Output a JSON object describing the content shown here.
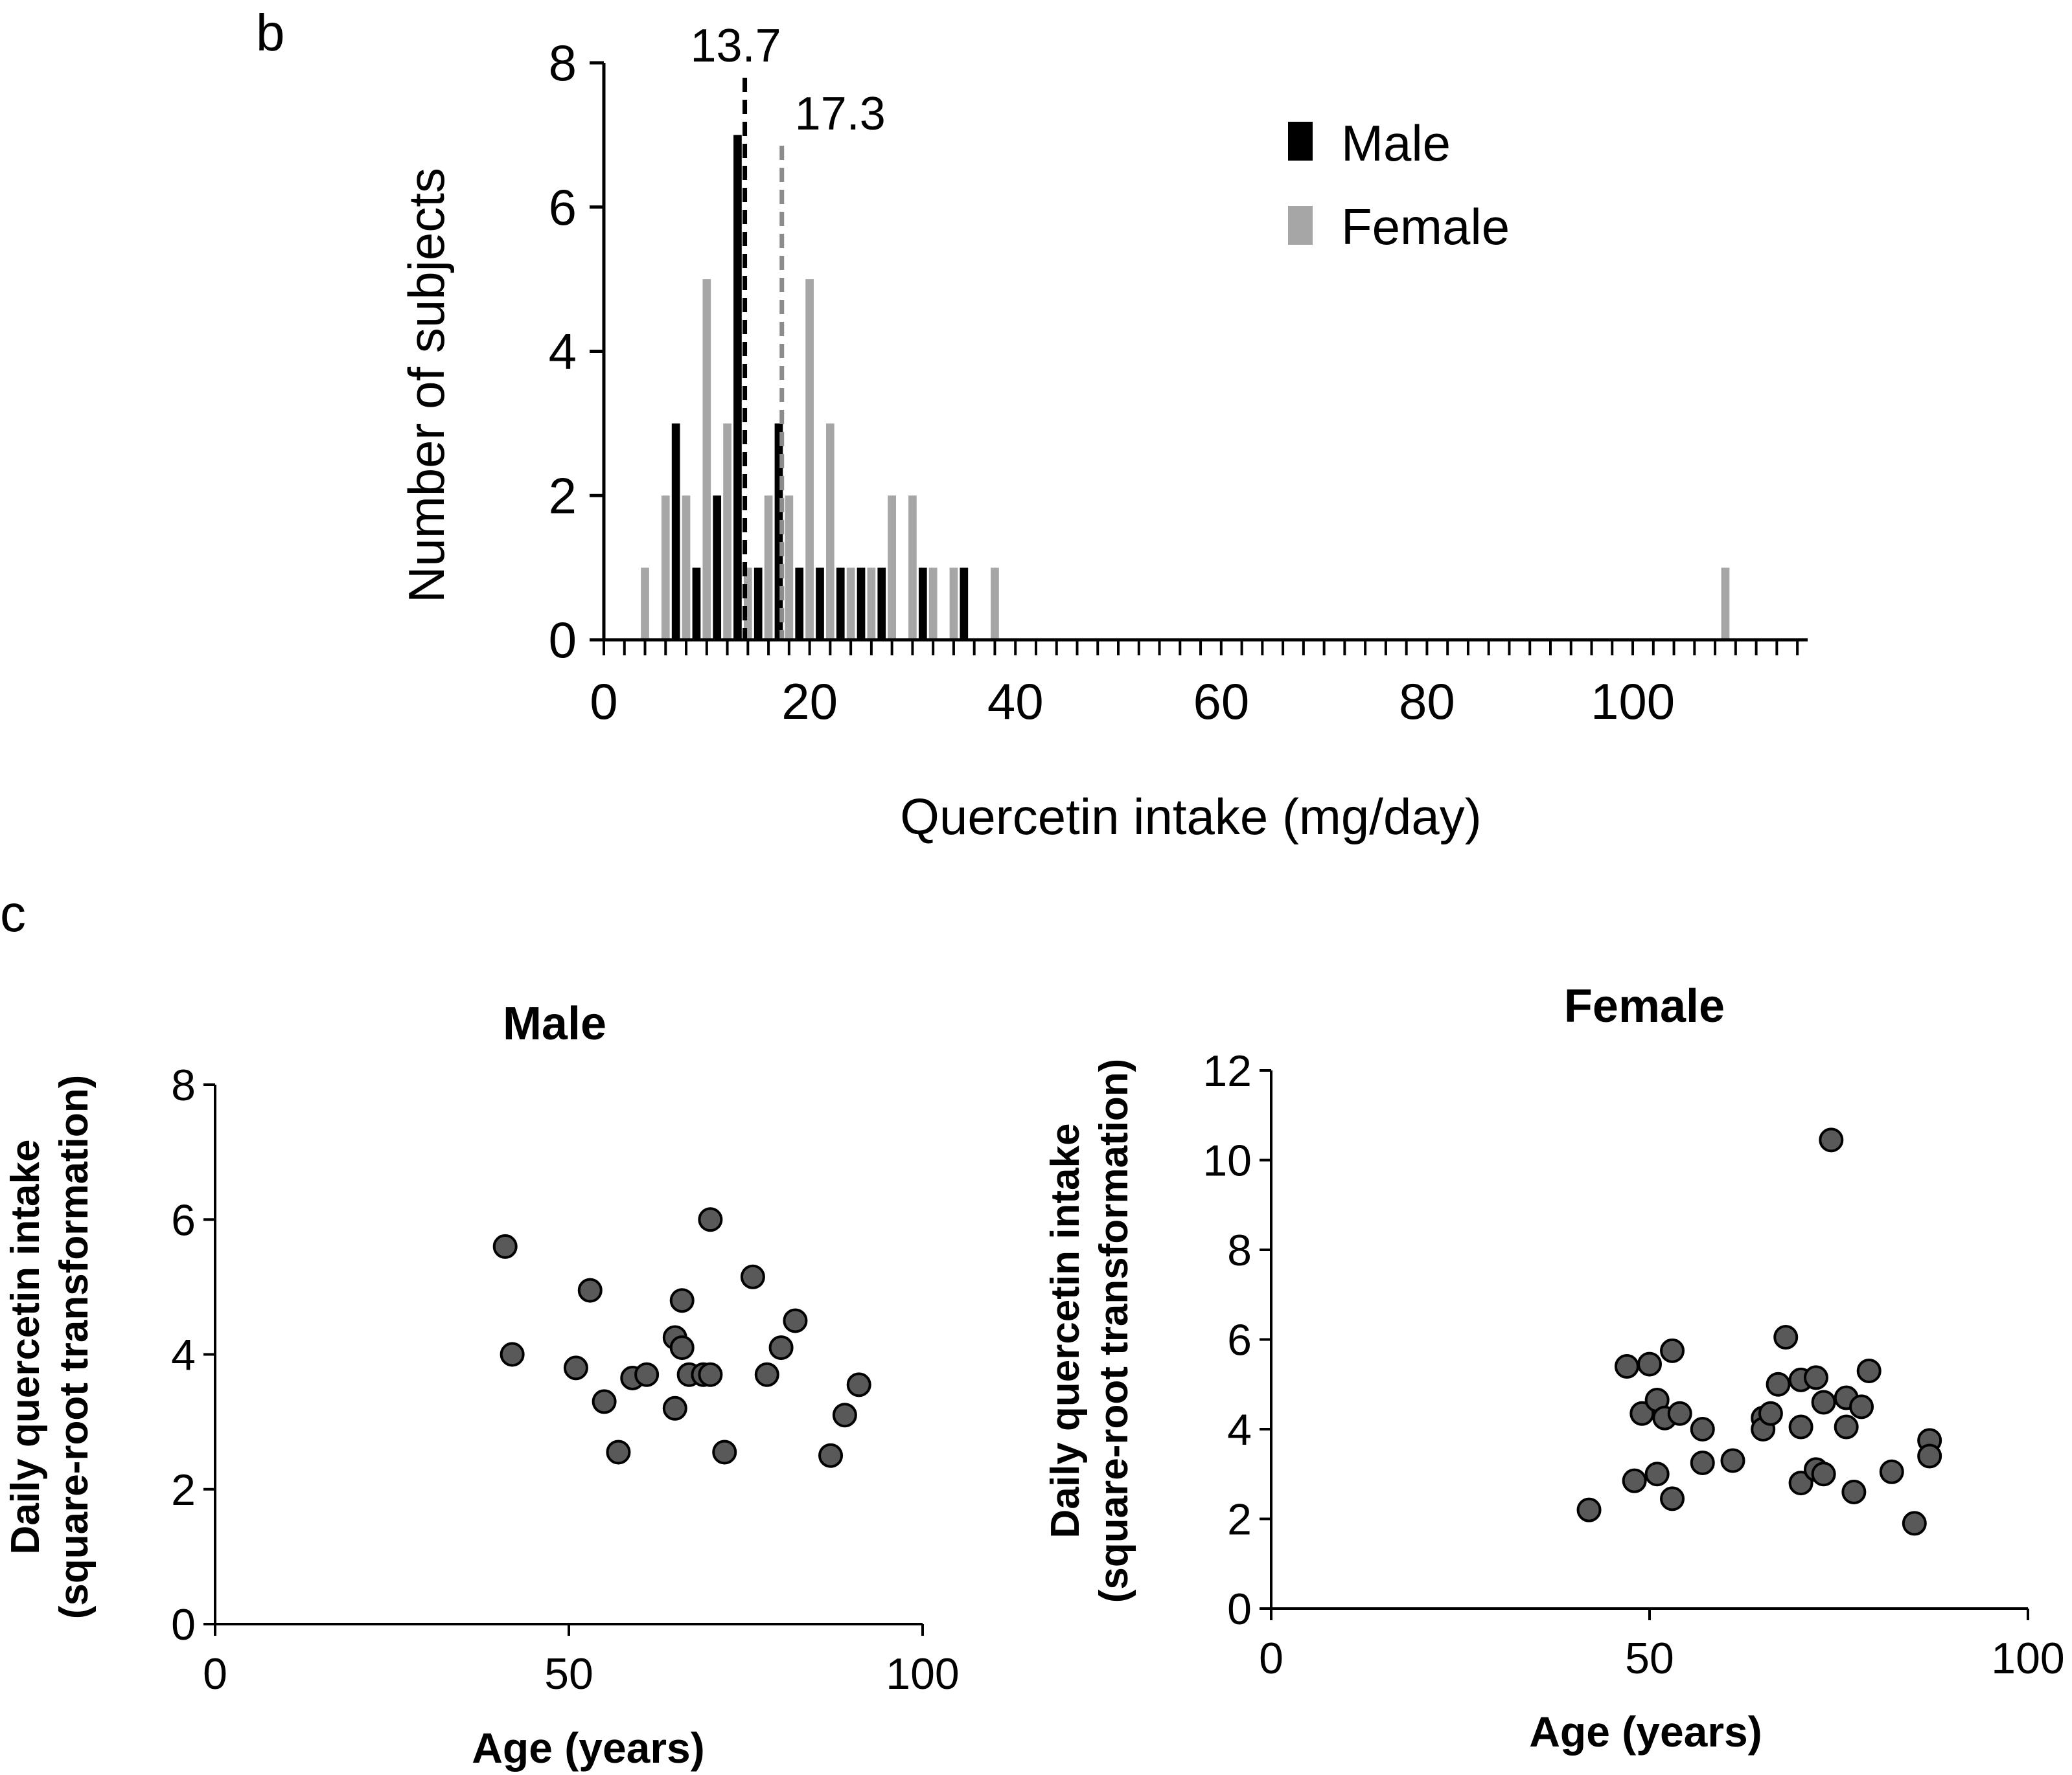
{
  "chart_data": [
    {
      "panel": "b",
      "type": "bar",
      "title": "",
      "xlabel": "Quercetin intake (mg/day)",
      "ylabel": "Number of subjects",
      "xlim": [
        0,
        117
      ],
      "ylim": [
        0,
        8
      ],
      "xticks": [
        0,
        20,
        40,
        60,
        80,
        100
      ],
      "yticks": [
        0,
        2,
        4,
        6,
        8
      ],
      "legend_position": "top-right",
      "series": [
        {
          "name": "Male",
          "color": "#000000",
          "bins": [
            {
              "x": 7,
              "count": 3
            },
            {
              "x": 9,
              "count": 1
            },
            {
              "x": 11,
              "count": 2
            },
            {
              "x": 13,
              "count": 7
            },
            {
              "x": 15,
              "count": 1
            },
            {
              "x": 17,
              "count": 3
            },
            {
              "x": 19,
              "count": 1
            },
            {
              "x": 21,
              "count": 1
            },
            {
              "x": 23,
              "count": 1
            },
            {
              "x": 25,
              "count": 1
            },
            {
              "x": 27,
              "count": 1
            },
            {
              "x": 31,
              "count": 1
            },
            {
              "x": 35,
              "count": 1
            }
          ]
        },
        {
          "name": "Female",
          "color": "#a6a6a6",
          "bins": [
            {
              "x": 4,
              "count": 1
            },
            {
              "x": 6,
              "count": 2
            },
            {
              "x": 8,
              "count": 2
            },
            {
              "x": 10,
              "count": 5
            },
            {
              "x": 12,
              "count": 3
            },
            {
              "x": 14,
              "count": 1
            },
            {
              "x": 16,
              "count": 2
            },
            {
              "x": 18,
              "count": 2
            },
            {
              "x": 20,
              "count": 5
            },
            {
              "x": 22,
              "count": 3
            },
            {
              "x": 24,
              "count": 1
            },
            {
              "x": 26,
              "count": 1
            },
            {
              "x": 28,
              "count": 2
            },
            {
              "x": 30,
              "count": 2
            },
            {
              "x": 32,
              "count": 1
            },
            {
              "x": 34,
              "count": 1
            },
            {
              "x": 38,
              "count": 1
            },
            {
              "x": 109,
              "count": 1
            }
          ]
        }
      ],
      "reference_lines": [
        {
          "label": "13.7",
          "value": 13.7,
          "series": "Male",
          "color": "#000000"
        },
        {
          "label": "17.3",
          "value": 17.3,
          "series": "Female",
          "color": "#8c8c8c"
        }
      ]
    },
    {
      "panel": "c",
      "type": "scatter",
      "title": "Male",
      "xlabel": "Age (years)",
      "ylabel": [
        "Daily quercetin intake",
        "(square-root transformation)"
      ],
      "xlim": [
        0,
        100
      ],
      "ylim": [
        0,
        8
      ],
      "xticks": [
        0,
        50,
        100
      ],
      "yticks": [
        0,
        2,
        4,
        6,
        8
      ],
      "points": [
        [
          41,
          5.6
        ],
        [
          42,
          4.0
        ],
        [
          51,
          3.8
        ],
        [
          53,
          4.95
        ],
        [
          55,
          3.3
        ],
        [
          57,
          2.55
        ],
        [
          59,
          3.65
        ],
        [
          61,
          3.7
        ],
        [
          65,
          4.25
        ],
        [
          65,
          3.2
        ],
        [
          66,
          4.8
        ],
        [
          66,
          4.1
        ],
        [
          67,
          3.7
        ],
        [
          69,
          3.7
        ],
        [
          70,
          6.0
        ],
        [
          70,
          3.7
        ],
        [
          72,
          2.55
        ],
        [
          76,
          5.15
        ],
        [
          78,
          3.7
        ],
        [
          80,
          4.1
        ],
        [
          82,
          4.5
        ],
        [
          87,
          2.5
        ],
        [
          89,
          3.1
        ],
        [
          91,
          3.55
        ]
      ]
    },
    {
      "panel": "c",
      "type": "scatter",
      "title": "Female",
      "xlabel": "Age (years)",
      "ylabel": [
        "Daily quercetin intake",
        "(square-root transformation)"
      ],
      "xlim": [
        0,
        100
      ],
      "ylim": [
        0,
        12
      ],
      "xticks": [
        0,
        50,
        100
      ],
      "yticks": [
        0,
        2,
        4,
        6,
        8,
        10,
        12
      ],
      "points": [
        [
          42,
          2.2
        ],
        [
          47,
          5.4
        ],
        [
          48,
          2.85
        ],
        [
          49,
          4.35
        ],
        [
          50,
          5.45
        ],
        [
          51,
          4.65
        ],
        [
          51,
          3.0
        ],
        [
          52,
          4.25
        ],
        [
          53,
          5.75
        ],
        [
          53,
          2.45
        ],
        [
          54,
          4.35
        ],
        [
          57,
          4.0
        ],
        [
          57,
          3.25
        ],
        [
          61,
          3.3
        ],
        [
          65,
          4.25
        ],
        [
          65,
          4.0
        ],
        [
          66,
          4.35
        ],
        [
          67,
          5.0
        ],
        [
          68,
          6.05
        ],
        [
          70,
          5.1
        ],
        [
          70,
          4.05
        ],
        [
          70,
          2.8
        ],
        [
          72,
          5.15
        ],
        [
          72,
          3.1
        ],
        [
          73,
          4.6
        ],
        [
          73,
          3.0
        ],
        [
          74,
          10.45
        ],
        [
          76,
          4.7
        ],
        [
          76,
          4.05
        ],
        [
          77,
          2.6
        ],
        [
          78,
          4.5
        ],
        [
          79,
          5.3
        ],
        [
          82,
          3.05
        ],
        [
          85,
          1.9
        ],
        [
          87,
          3.75
        ],
        [
          87,
          3.4
        ]
      ]
    }
  ],
  "panel_labels": {
    "b": "b",
    "c": "c"
  }
}
